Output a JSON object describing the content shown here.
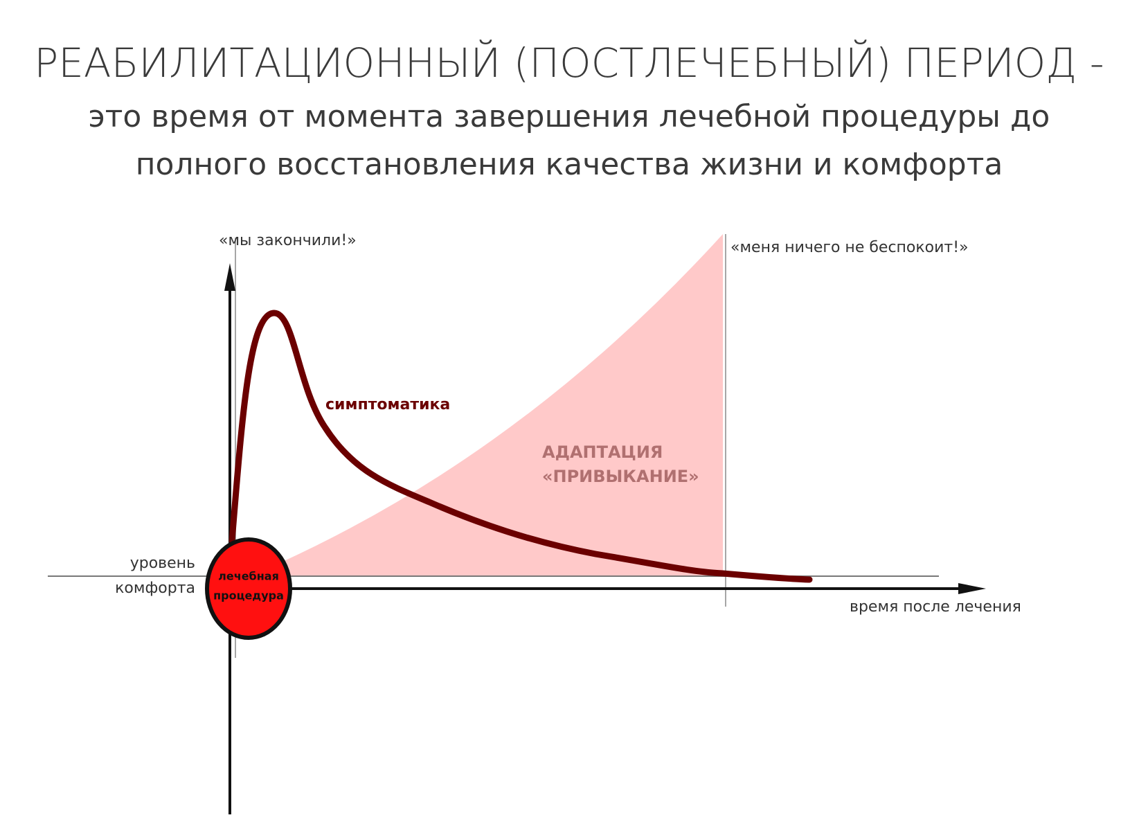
{
  "header": {
    "title": "РЕАБИЛИТАЦИОННЫЙ (ПОСТЛЕЧЕБНЫЙ) ПЕРИОД -",
    "subtitle_lines": [
      "это время от момента завершения лечебной процедуры до",
      "полного восстановления качества жизни и комфорта"
    ]
  },
  "diagram": {
    "start_quote": "«мы закончили!»",
    "end_quote": "«меня ничего не беспокоит!»",
    "curve_label": "симптоматика",
    "area_label_lines": [
      "АДАПТАЦИЯ",
      "«ПРИВЫКАНИЕ»"
    ],
    "comfort_label_lines": [
      "уровень",
      "комфорта"
    ],
    "x_axis_label": "время после лечения",
    "procedure_label_lines": [
      "лечебная",
      "процедура"
    ]
  }
}
